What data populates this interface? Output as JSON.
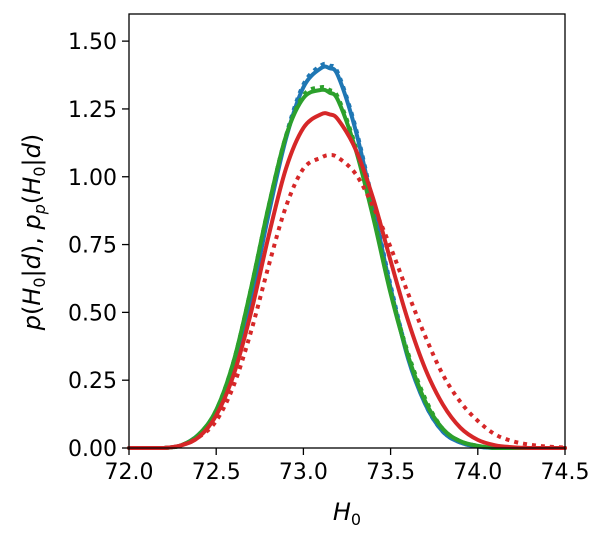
{
  "chart_data": {
    "type": "line",
    "title": "",
    "xlabel": "H0",
    "ylabel": "p(H0|d), pp(H0|d)",
    "xlim": [
      72.0,
      74.5
    ],
    "ylim": [
      0.0,
      1.6
    ],
    "x_ticks": [
      "72.0",
      "72.5",
      "73.0",
      "73.5",
      "74.0",
      "74.5"
    ],
    "y_ticks": [
      "0.00",
      "0.25",
      "0.50",
      "0.75",
      "1.00",
      "1.25",
      "1.50"
    ],
    "x_tick_values": [
      72.0,
      72.5,
      73.0,
      73.5,
      74.0,
      74.5
    ],
    "y_tick_values": [
      0.0,
      0.25,
      0.5,
      0.75,
      1.0,
      1.25,
      1.5
    ],
    "grid": false,
    "x": [
      72.0,
      72.1,
      72.2,
      72.3,
      72.4,
      72.5,
      72.6,
      72.7,
      72.8,
      72.9,
      73.0,
      73.1,
      73.15,
      73.2,
      73.3,
      73.4,
      73.5,
      73.6,
      73.7,
      73.8,
      73.9,
      74.0,
      74.1,
      74.2,
      74.3,
      74.4,
      74.5
    ],
    "series": [
      {
        "color": "#1f77b4",
        "style": "solid",
        "values": [
          0.0,
          0.0,
          0.0,
          0.01,
          0.05,
          0.13,
          0.3,
          0.55,
          0.86,
          1.14,
          1.33,
          1.4,
          1.4,
          1.37,
          1.17,
          0.89,
          0.59,
          0.33,
          0.16,
          0.06,
          0.02,
          0.005,
          0.0,
          0.0,
          0.0,
          0.0,
          0.0
        ]
      },
      {
        "color": "#1f77b4",
        "style": "dotted",
        "values": [
          0.0,
          0.0,
          0.0,
          0.01,
          0.05,
          0.13,
          0.3,
          0.55,
          0.87,
          1.15,
          1.34,
          1.41,
          1.41,
          1.38,
          1.18,
          0.9,
          0.6,
          0.34,
          0.16,
          0.06,
          0.02,
          0.005,
          0.0,
          0.0,
          0.0,
          0.0,
          0.0
        ]
      },
      {
        "color": "#2ca02c",
        "style": "solid",
        "values": [
          0.0,
          0.0,
          0.0,
          0.01,
          0.05,
          0.14,
          0.32,
          0.59,
          0.89,
          1.15,
          1.29,
          1.32,
          1.31,
          1.28,
          1.1,
          0.85,
          0.57,
          0.34,
          0.17,
          0.07,
          0.025,
          0.008,
          0.0,
          0.0,
          0.0,
          0.0,
          0.0
        ]
      },
      {
        "color": "#2ca02c",
        "style": "dotted",
        "values": [
          0.0,
          0.0,
          0.0,
          0.01,
          0.05,
          0.14,
          0.32,
          0.59,
          0.89,
          1.15,
          1.3,
          1.33,
          1.32,
          1.29,
          1.11,
          0.86,
          0.58,
          0.35,
          0.18,
          0.07,
          0.025,
          0.008,
          0.0,
          0.0,
          0.0,
          0.0,
          0.0
        ]
      },
      {
        "color": "#d62728",
        "style": "solid",
        "values": [
          0.0,
          0.0,
          0.0,
          0.01,
          0.04,
          0.12,
          0.27,
          0.5,
          0.78,
          1.03,
          1.18,
          1.23,
          1.23,
          1.21,
          1.1,
          0.92,
          0.69,
          0.47,
          0.29,
          0.16,
          0.075,
          0.03,
          0.01,
          0.003,
          0.0,
          0.0,
          0.0
        ]
      },
      {
        "color": "#d62728",
        "style": "dotted",
        "values": [
          0.0,
          0.0,
          0.0,
          0.01,
          0.04,
          0.1,
          0.23,
          0.43,
          0.67,
          0.89,
          1.03,
          1.07,
          1.08,
          1.07,
          1.01,
          0.89,
          0.74,
          0.57,
          0.41,
          0.27,
          0.17,
          0.1,
          0.05,
          0.025,
          0.012,
          0.005,
          0.002
        ]
      }
    ]
  }
}
